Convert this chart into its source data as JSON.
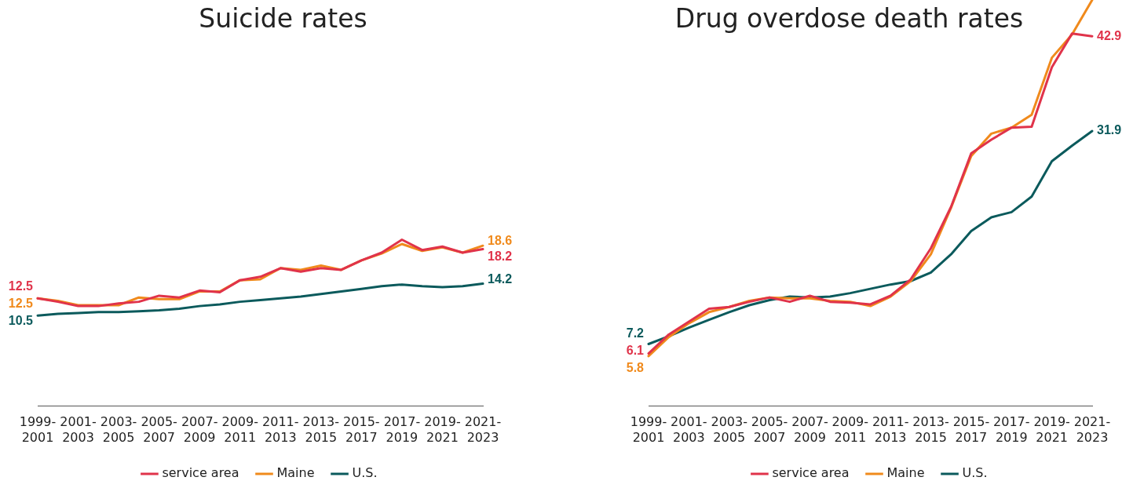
{
  "chart_data": [
    {
      "type": "line",
      "title": "Suicide rates",
      "categories": [
        "1999-2001",
        null,
        "2001-2003",
        null,
        "2003-2005",
        null,
        "2005-2007",
        null,
        "2007-2009",
        null,
        "2009-2011",
        null,
        "2011-2013",
        null,
        "2013-2015",
        null,
        "2015-2017",
        null,
        "2017-2019",
        null,
        "2019-2021",
        null,
        "2021-2023"
      ],
      "grid": false,
      "legend": "bottom",
      "marker": "none",
      "line_style": "solid",
      "series": [
        {
          "name": "service area",
          "color": "#e0334a",
          "values": [
            12.5,
            12.1,
            11.6,
            11.6,
            11.9,
            12.1,
            12.8,
            12.6,
            13.4,
            13.2,
            14.6,
            15.0,
            16.0,
            15.6,
            16.0,
            15.8,
            16.9,
            17.8,
            19.3,
            18.1,
            18.5,
            17.8,
            18.2
          ],
          "value_labels": [
            "12.5",
            null,
            null,
            null,
            null,
            null,
            null,
            null,
            null,
            null,
            null,
            null,
            null,
            null,
            null,
            null,
            null,
            null,
            null,
            null,
            null,
            null,
            "18.2"
          ]
        },
        {
          "name": "Maine",
          "color": "#f08a1c",
          "values": [
            12.5,
            12.2,
            11.7,
            11.7,
            11.7,
            12.6,
            12.4,
            12.4,
            13.3,
            13.3,
            14.6,
            14.7,
            16.0,
            15.8,
            16.3,
            15.8,
            16.9,
            17.7,
            18.8,
            18.0,
            18.4,
            17.8,
            18.6
          ],
          "value_labels": [
            "12.5",
            null,
            null,
            null,
            null,
            null,
            null,
            null,
            null,
            null,
            null,
            null,
            null,
            null,
            null,
            null,
            null,
            null,
            null,
            null,
            null,
            null,
            "18.6"
          ]
        },
        {
          "name": "U.S.",
          "color": "#0b5a5c",
          "values": [
            10.5,
            10.7,
            10.8,
            10.9,
            10.9,
            11.0,
            11.1,
            11.3,
            11.6,
            11.8,
            12.1,
            12.3,
            12.5,
            12.7,
            13.0,
            13.3,
            13.6,
            13.9,
            14.1,
            13.9,
            13.8,
            13.9,
            14.2
          ],
          "value_labels": [
            "10.5",
            null,
            null,
            null,
            null,
            null,
            null,
            null,
            null,
            null,
            null,
            null,
            null,
            null,
            null,
            null,
            null,
            null,
            null,
            null,
            null,
            null,
            "14.2"
          ]
        }
      ]
    },
    {
      "type": "line",
      "title": "Drug overdose death rates",
      "categories": [
        "1999-2001",
        null,
        "2001-2003",
        null,
        "2003-2005",
        null,
        "2005-2007",
        null,
        "2007-2009",
        null,
        "2009-2011",
        null,
        "2011-2013",
        null,
        "2013-2015",
        null,
        "2015-2017",
        null,
        "2017-2019",
        null,
        "2019-2021",
        null,
        "2021-2023"
      ],
      "grid": false,
      "legend": "bottom",
      "marker": "none",
      "line_style": "solid",
      "series": [
        {
          "name": "service area",
          "color": "#e0334a",
          "values": [
            6.1,
            8.3,
            9.8,
            11.3,
            11.5,
            12.1,
            12.6,
            12.1,
            12.8,
            12.1,
            12.0,
            11.8,
            12.8,
            14.7,
            18.3,
            23.1,
            29.3,
            30.9,
            32.3,
            32.4,
            39.3,
            43.2,
            42.9
          ],
          "value_labels": [
            "6.1",
            null,
            null,
            null,
            null,
            null,
            null,
            null,
            null,
            null,
            null,
            null,
            null,
            null,
            null,
            null,
            null,
            null,
            null,
            null,
            null,
            null,
            "42.9"
          ]
        },
        {
          "name": "Maine",
          "color": "#f08a1c",
          "values": [
            5.8,
            8.0,
            9.6,
            10.9,
            11.5,
            12.2,
            12.6,
            12.5,
            12.5,
            12.2,
            12.1,
            11.6,
            12.7,
            14.5,
            17.6,
            23.0,
            29.0,
            31.6,
            32.3,
            33.8,
            40.4,
            43.1,
            47.1
          ],
          "value_labels": [
            "5.8",
            null,
            null,
            null,
            null,
            null,
            null,
            null,
            null,
            null,
            null,
            null,
            null,
            null,
            null,
            null,
            null,
            null,
            null,
            null,
            null,
            null,
            null
          ]
        },
        {
          "name": "U.S.",
          "color": "#0b5a5c",
          "values": [
            7.2,
            8.1,
            9.1,
            10.0,
            10.9,
            11.7,
            12.3,
            12.7,
            12.6,
            12.7,
            13.1,
            13.6,
            14.1,
            14.5,
            15.5,
            17.6,
            20.3,
            21.9,
            22.5,
            24.3,
            28.4,
            30.2,
            31.9
          ],
          "value_labels": [
            "7.2",
            null,
            null,
            null,
            null,
            null,
            null,
            null,
            null,
            null,
            null,
            null,
            null,
            null,
            null,
            null,
            null,
            null,
            null,
            null,
            null,
            null,
            "31.9"
          ]
        }
      ]
    }
  ]
}
